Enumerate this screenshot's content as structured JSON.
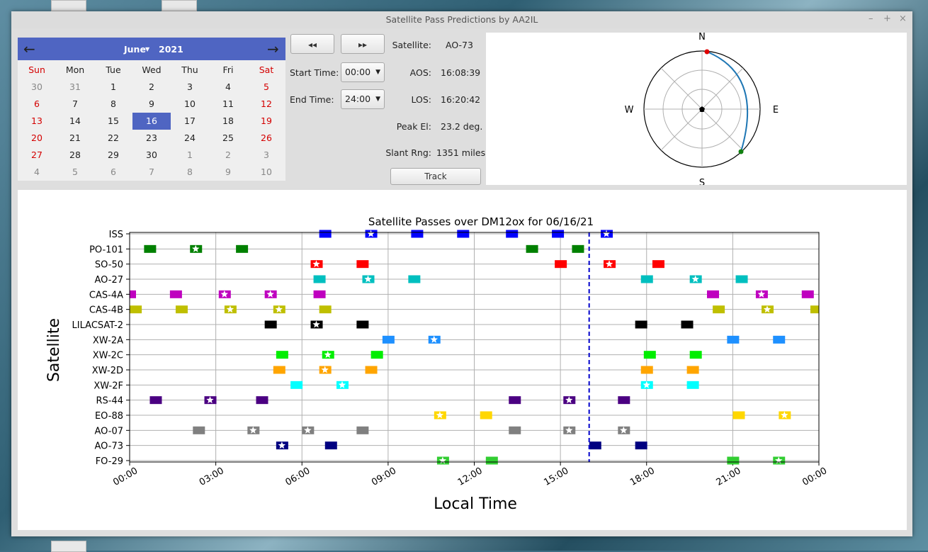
{
  "window": {
    "title": "Satellite Pass Predictions by AA2IL"
  },
  "calendar": {
    "month": "June",
    "year": "2021",
    "dow": [
      "Sun",
      "Mon",
      "Tue",
      "Wed",
      "Thu",
      "Fri",
      "Sat"
    ],
    "weeks": [
      [
        "30",
        "31",
        "1",
        "2",
        "3",
        "4",
        "5"
      ],
      [
        "6",
        "7",
        "8",
        "9",
        "10",
        "11",
        "12"
      ],
      [
        "13",
        "14",
        "15",
        "16",
        "17",
        "18",
        "19"
      ],
      [
        "20",
        "21",
        "22",
        "23",
        "24",
        "25",
        "26"
      ],
      [
        "27",
        "28",
        "29",
        "30",
        "1",
        "2",
        "3"
      ],
      [
        "4",
        "5",
        "6",
        "7",
        "8",
        "9",
        "10"
      ]
    ],
    "selected": "16"
  },
  "controls": {
    "rewind_label": "◂◂",
    "forward_label": "▸▸",
    "start_time_label": "Start Time:",
    "start_time_value": "00:00",
    "end_time_label": "End Time:",
    "end_time_value": "24:00",
    "track_label": "Track"
  },
  "info": {
    "satellite_label": "Satellite:",
    "satellite_value": "AO-73",
    "aos_label": "AOS:",
    "aos_value": "16:08:39",
    "los_label": "LOS:",
    "los_value": "16:20:42",
    "peak_label": "Peak El:",
    "peak_value": "23.2 deg.",
    "slant_label": "Slant Rng:",
    "slant_value": "1351 miles"
  },
  "polar": {
    "n": "N",
    "e": "E",
    "s": "S",
    "w": "W"
  },
  "chart_data": {
    "type": "timeline",
    "title": "Satellite Passes over DM12ox for 06/16/21",
    "xlabel": "Local Time",
    "ylabel": "Satellite",
    "xlim": [
      0,
      24
    ],
    "xticks": [
      "00:00",
      "03:00",
      "06:00",
      "09:00",
      "12:00",
      "15:00",
      "18:00",
      "21:00",
      "00:00"
    ],
    "current_time": 16.0,
    "satellites": [
      {
        "name": "ISS",
        "color": "#0000ff",
        "passes": [
          6.8,
          8.4,
          10.0,
          11.6,
          13.3,
          14.9,
          16.6
        ],
        "starred": [
          8.4,
          16.6
        ]
      },
      {
        "name": "PO-101",
        "color": "#008000",
        "passes": [
          0.7,
          2.3,
          3.9,
          14.0,
          15.6
        ],
        "starred": [
          2.3
        ]
      },
      {
        "name": "SO-50",
        "color": "#ff0000",
        "passes": [
          6.5,
          8.1,
          15.0,
          16.7,
          18.4
        ],
        "starred": [
          6.5,
          16.7
        ]
      },
      {
        "name": "AO-27",
        "color": "#00bfbf",
        "passes": [
          6.6,
          8.3,
          9.9,
          18.0,
          19.7,
          21.3
        ],
        "starred": [
          8.3,
          19.7
        ]
      },
      {
        "name": "CAS-4A",
        "color": "#bf00bf",
        "passes": [
          0.0,
          1.6,
          3.3,
          4.9,
          6.6,
          20.3,
          22.0,
          23.6
        ],
        "starred": [
          3.3,
          4.9,
          22.0
        ]
      },
      {
        "name": "CAS-4B",
        "color": "#bfbf00",
        "passes": [
          0.2,
          1.8,
          3.5,
          5.2,
          6.8,
          20.5,
          22.2,
          23.9
        ],
        "starred": [
          3.5,
          5.2,
          22.2
        ]
      },
      {
        "name": "LILACSAT-2",
        "color": "#000000",
        "passes": [
          4.9,
          6.5,
          8.1,
          17.8,
          19.4
        ],
        "starred": [
          6.5
        ]
      },
      {
        "name": "XW-2A",
        "color": "#1e90ff",
        "passes": [
          9.0,
          10.6,
          21.0,
          22.6
        ],
        "starred": [
          10.6
        ]
      },
      {
        "name": "XW-2C",
        "color": "#00ee00",
        "passes": [
          5.3,
          6.9,
          8.6,
          18.1,
          19.7
        ],
        "starred": [
          6.9
        ]
      },
      {
        "name": "XW-2D",
        "color": "#ffa500",
        "passes": [
          5.2,
          6.8,
          8.4,
          18.0,
          19.6
        ],
        "starred": [
          6.8
        ]
      },
      {
        "name": "XW-2F",
        "color": "#00ffff",
        "passes": [
          5.8,
          7.4,
          18.0,
          19.6
        ],
        "starred": [
          7.4,
          18.0
        ]
      },
      {
        "name": "RS-44",
        "color": "#4b0082",
        "passes": [
          0.9,
          2.8,
          4.6,
          13.4,
          15.3,
          17.2
        ],
        "starred": [
          2.8,
          15.3
        ]
      },
      {
        "name": "EO-88",
        "color": "#ffd700",
        "passes": [
          10.8,
          12.4,
          21.2,
          22.8
        ],
        "starred": [
          10.8,
          22.8
        ]
      },
      {
        "name": "AO-07",
        "color": "#808080",
        "passes": [
          2.4,
          4.3,
          6.2,
          8.1,
          13.4,
          15.3,
          17.2
        ],
        "starred": [
          4.3,
          6.2,
          15.3,
          17.2
        ]
      },
      {
        "name": "AO-73",
        "color": "#000080",
        "passes": [
          5.3,
          7.0,
          16.2,
          17.8
        ],
        "starred": [
          5.3
        ]
      },
      {
        "name": "FO-29",
        "color": "#32cd32",
        "passes": [
          10.9,
          12.6,
          21.0,
          22.6
        ],
        "starred": [
          10.9,
          22.6
        ]
      }
    ]
  }
}
